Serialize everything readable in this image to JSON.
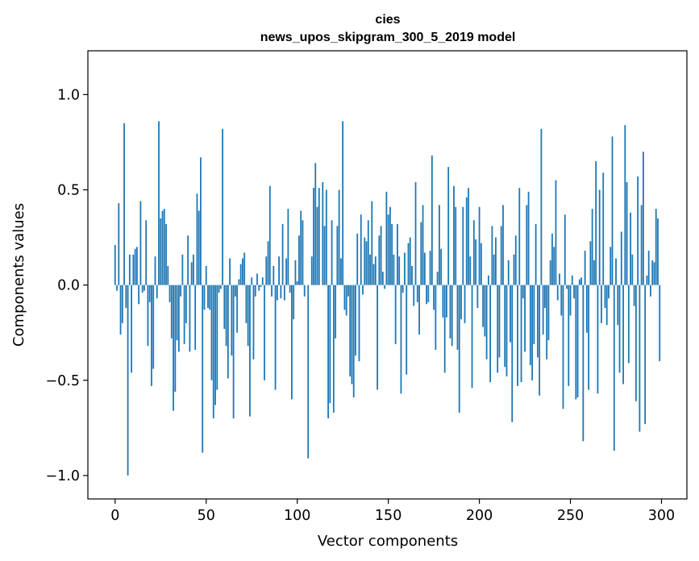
{
  "chart_data": {
    "type": "bar",
    "title": "cies",
    "subtitle": "news_upos_skipgram_300_5_2019 model",
    "xlabel": "Vector components",
    "ylabel": "Components values",
    "xlim": [
      -14.95,
      313.95
    ],
    "ylim": [
      -1.123,
      1.23
    ],
    "x_ticks": [
      0,
      50,
      100,
      150,
      200,
      250,
      300
    ],
    "x_tick_labels": [
      "0",
      "50",
      "100",
      "150",
      "200",
      "250",
      "300"
    ],
    "y_ticks": [
      -1.0,
      -0.5,
      0.0,
      0.5,
      1.0
    ],
    "y_tick_labels": [
      "−1.0",
      "−0.5",
      "0.0",
      "0.5",
      "1.0"
    ],
    "bar_color": "#1f77b4",
    "grid": false,
    "x": "0..299 (vector component index)",
    "values": [
      0.21,
      -0.03,
      0.43,
      -0.26,
      -0.2,
      0.85,
      -0.12,
      -1.0,
      0.16,
      -0.46,
      0.16,
      0.19,
      0.2,
      -0.1,
      0.44,
      -0.04,
      -0.03,
      0.34,
      -0.32,
      -0.09,
      -0.53,
      -0.44,
      0.15,
      -0.07,
      0.86,
      0.35,
      0.39,
      0.4,
      0.32,
      0.1,
      -0.09,
      -0.28,
      -0.66,
      -0.56,
      -0.29,
      -0.35,
      -0.06,
      0.16,
      -0.31,
      -0.2,
      0.26,
      -0.35,
      0.12,
      0.16,
      -0.34,
      0.48,
      0.39,
      0.67,
      -0.88,
      -0.13,
      0.1,
      -0.12,
      -0.13,
      -0.5,
      -0.7,
      -0.63,
      -0.55,
      -0.04,
      -0.02,
      0.82,
      -0.23,
      -0.32,
      -0.49,
      0.14,
      -0.37,
      -0.7,
      -0.06,
      -0.25,
      0.03,
      0.11,
      0.14,
      0.17,
      -0.2,
      -0.32,
      -0.69,
      0.04,
      -0.39,
      -0.06,
      0.06,
      -0.03,
      -0.01,
      0.04,
      -0.5,
      0.15,
      0.23,
      0.52,
      -0.06,
      0.1,
      -0.55,
      -0.08,
      0.15,
      -0.07,
      0.32,
      -0.08,
      0.14,
      0.4,
      -0.04,
      -0.6,
      -0.18,
      0.13,
      0.02,
      0.26,
      0.39,
      0.34,
      -0.06,
      0.0,
      -0.91,
      0.0,
      0.15,
      0.51,
      0.64,
      0.41,
      0.51,
      0.0,
      0.54,
      0.31,
      0.5,
      -0.7,
      -0.62,
      0.34,
      -0.67,
      -0.28,
      0.31,
      0.5,
      0.14,
      0.86,
      -0.13,
      -0.16,
      -0.06,
      -0.48,
      -0.52,
      -0.59,
      -0.37,
      0.27,
      -0.4,
      0.37,
      -0.05,
      0.25,
      0.23,
      0.34,
      0.16,
      0.44,
      0.11,
      0.15,
      -0.55,
      0.26,
      0.31,
      0.07,
      -0.02,
      0.49,
      0.37,
      0.41,
      0.32,
      0.16,
      -0.31,
      0.32,
      0.15,
      -0.57,
      -0.04,
      0.17,
      -0.47,
      0.22,
      0.25,
      0.1,
      -0.11,
      0.54,
      -0.09,
      -0.26,
      0.33,
      0.42,
      0.17,
      -0.1,
      -0.09,
      0.18,
      0.68,
      -0.13,
      -0.34,
      0.07,
      0.42,
      0.19,
      -0.17,
      -0.46,
      -0.17,
      0.62,
      -0.28,
      -0.32,
      0.52,
      0.41,
      -0.34,
      -0.67,
      -0.18,
      0.41,
      -0.2,
      0.46,
      0.51,
      0.15,
      -0.54,
      0.34,
      0.24,
      -0.12,
      0.41,
      0.22,
      -0.22,
      -0.27,
      -0.39,
      0.05,
      -0.51,
      0.31,
      0.16,
      0.25,
      -0.46,
      -0.38,
      0.31,
      0.42,
      -0.43,
      -0.48,
      0.13,
      -0.3,
      -0.72,
      0.16,
      0.26,
      -0.53,
      0.51,
      -0.51,
      -0.07,
      -0.35,
      0.42,
      0.49,
      -0.42,
      -0.5,
      -0.31,
      0.32,
      -0.38,
      -0.58,
      0.82,
      -0.26,
      -0.12,
      -0.39,
      -0.29,
      0.13,
      0.27,
      0.2,
      0.55,
      -0.08,
      0.06,
      -0.16,
      -0.65,
      0.37,
      -0.02,
      -0.53,
      -0.16,
      0.05,
      -0.07,
      -0.6,
      -0.59,
      0.03,
      0.04,
      -0.82,
      0.18,
      -0.25,
      -0.55,
      0.23,
      0.4,
      0.13,
      0.65,
      -0.57,
      0.5,
      -0.2,
      0.59,
      -0.12,
      -0.21,
      -0.07,
      0.2,
      0.78,
      -0.87,
      0.14,
      -0.21,
      -0.46,
      0.28,
      -0.52,
      0.84,
      0.54,
      -0.41,
      0.38,
      0.16,
      -0.11,
      -0.61,
      0.57,
      -0.77,
      0.42,
      0.7,
      -0.73,
      0.05,
      0.18,
      -0.06,
      0.13,
      0.12,
      0.4,
      0.35,
      -0.4
    ]
  }
}
